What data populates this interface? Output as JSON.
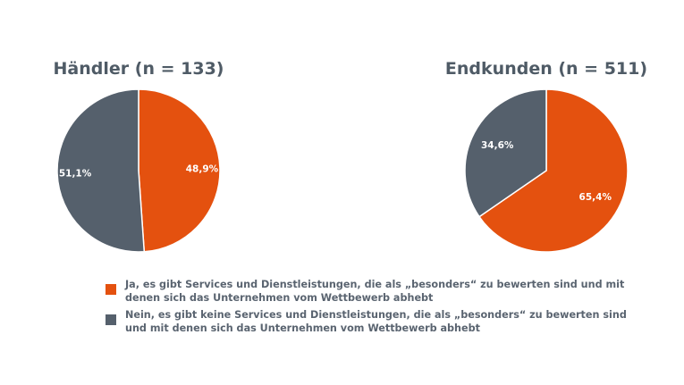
{
  "chart_data": [
    {
      "type": "pie",
      "title": "Händler (n = 133)",
      "categories": [
        "Ja, es gibt Services und Dienstleistungen, die als „besonders“ zu bewerten sind und mit denen sich das Unternehmen vom Wettbewerb abhebt",
        "Nein, es gibt keine Services und Dienstleistungen, die als „besonders“ zu bewerten sind und mit denen sich das Unternehmen vom Wettbewerb abhebt"
      ],
      "values": [
        48.9,
        51.1
      ],
      "labels": [
        "48,9%",
        "51,1%"
      ],
      "colors": [
        "#e4510f",
        "#55606c"
      ]
    },
    {
      "type": "pie",
      "title": "Endkunden (n = 511)",
      "categories": [
        "Ja, es gibt Services und Dienstleistungen, die als „besonders“ zu bewerten sind und mit denen sich das Unternehmen vom Wettbewerb abhebt",
        "Nein, es gibt keine Services und Dienstleistungen, die als „besonders“ zu bewerten sind und mit denen sich das Unternehmen vom Wettbewerb abhebt"
      ],
      "values": [
        65.4,
        34.6
      ],
      "labels": [
        "65,4%",
        "34,6%"
      ],
      "colors": [
        "#e4510f",
        "#55606c"
      ]
    }
  ],
  "legend": {
    "placement": "bottom",
    "items": [
      {
        "text": "Ja, es gibt Services und Dienstleistungen, die als „besonders“ zu bewerten sind und mit denen sich das Unternehmen vom Wettbewerb abhebt",
        "color": "#e4510f"
      },
      {
        "text": "Nein, es gibt keine Services und Dienstleistungen, die als „besonders“ zu bewerten sind und mit denen sich das Unternehmen vom Wettbewerb abhebt",
        "color": "#55606c"
      }
    ]
  }
}
